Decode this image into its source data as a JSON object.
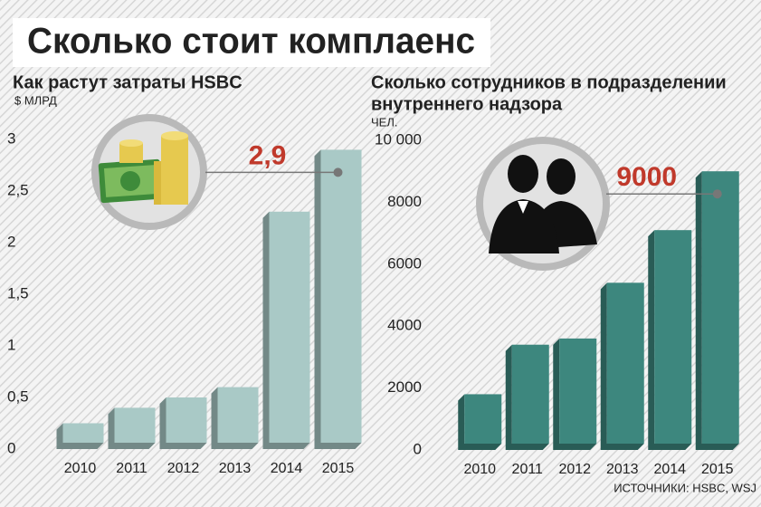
{
  "title": "Сколько стоит комплаенс",
  "source": "ИСТОЧНИКИ: HSBC, WSJ",
  "chart_data": [
    {
      "type": "bar",
      "title": [
        "Как растут затраты HSBC"
      ],
      "ylabel": "$ МЛРД",
      "categories": [
        "2010",
        "2011",
        "2012",
        "2013",
        "2014",
        "2015"
      ],
      "values": [
        0.25,
        0.4,
        0.5,
        0.6,
        2.3,
        2.9
      ],
      "value_labels": [
        null,
        null,
        null,
        null,
        null,
        "2,9"
      ],
      "color": "#a9c9c6",
      "ylim": [
        0,
        3
      ],
      "yticks": [
        0,
        {
          "value": 0.5,
          "label": "0,5"
        },
        1,
        {
          "value": 1.5,
          "label": "1,5"
        },
        2,
        {
          "value": 2.5,
          "label": "2,5"
        },
        3
      ]
    },
    {
      "type": "bar",
      "title": [
        "Сколько сотрудников в подразделении",
        "внутреннего надзора"
      ],
      "ylabel": "ЧЕЛ.",
      "categories": [
        "2010",
        "2011",
        "2012",
        "2013",
        "2014",
        "2015"
      ],
      "values": [
        1800,
        3400,
        3600,
        5400,
        7100,
        9000
      ],
      "value_labels": [
        null,
        null,
        null,
        null,
        null,
        "9000"
      ],
      "color": "#3d877e",
      "ylim": [
        0,
        10000
      ],
      "yticks": [
        0,
        2000,
        4000,
        6000,
        8000,
        {
          "value": 10000,
          "label": "10 000"
        }
      ]
    }
  ]
}
